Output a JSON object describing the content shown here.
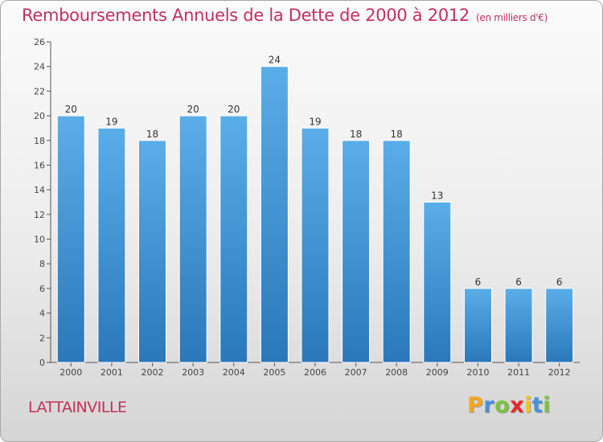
{
  "chart_data": {
    "type": "bar",
    "title": "Remboursements Annuels de la Dette de 2000 à 2012",
    "subtitle": "(en milliers d'€)",
    "categories": [
      "2000",
      "2001",
      "2002",
      "2003",
      "2004",
      "2005",
      "2006",
      "2007",
      "2008",
      "2009",
      "2010",
      "2011",
      "2012"
    ],
    "values": [
      20,
      19,
      18,
      20,
      20,
      24,
      19,
      18,
      18,
      13,
      6,
      6,
      6
    ],
    "ylim": [
      0,
      26
    ],
    "yticks": [
      0,
      2,
      4,
      6,
      8,
      10,
      12,
      14,
      16,
      18,
      20,
      22,
      24,
      26
    ],
    "grid": false,
    "bar_color": "#4a9ede"
  },
  "footer": {
    "place": "LATTAINVILLE",
    "logo": {
      "letters": [
        "P",
        "r",
        "o",
        "x",
        "i",
        "t",
        "i"
      ],
      "colors": [
        "#f5a623",
        "#4a90d9",
        "#7cc242",
        "#e8272b",
        "#f5c518",
        "#4a90d9",
        "#7cc242"
      ]
    }
  }
}
